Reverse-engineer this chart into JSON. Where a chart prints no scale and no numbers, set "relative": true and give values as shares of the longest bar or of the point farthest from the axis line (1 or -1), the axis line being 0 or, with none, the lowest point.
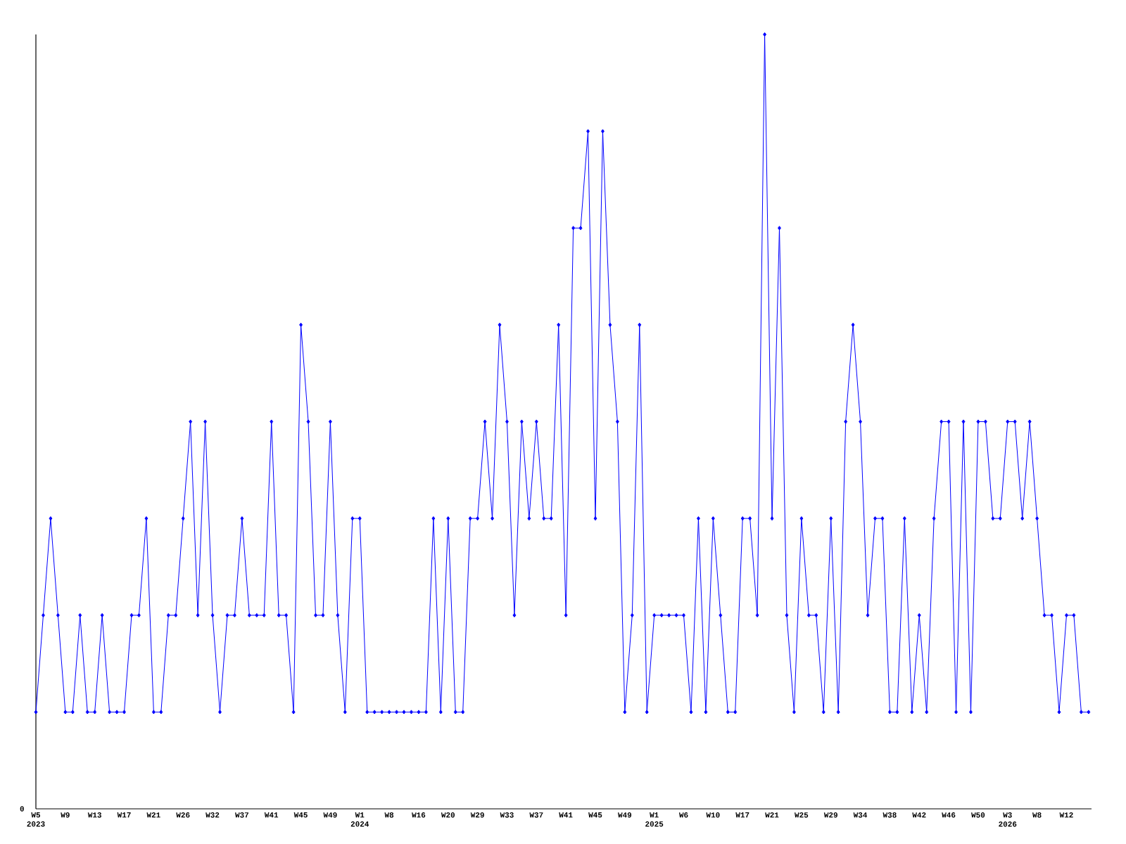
{
  "chart_data": {
    "type": "line",
    "relative": true,
    "color": "#0000ff",
    "marker": "diamond",
    "line_style": "solid",
    "categories": [
      "W5 2023",
      null,
      null,
      null,
      "W9",
      null,
      null,
      null,
      "W13",
      null,
      null,
      null,
      "W17",
      null,
      null,
      null,
      "W21",
      null,
      null,
      null,
      "W26",
      null,
      null,
      null,
      "W32",
      null,
      null,
      null,
      "W37",
      null,
      null,
      null,
      "W41",
      null,
      null,
      null,
      "W45",
      null,
      null,
      null,
      "W49",
      null,
      null,
      null,
      "W1 2024",
      null,
      null,
      null,
      "W8",
      null,
      null,
      null,
      "W16",
      null,
      null,
      null,
      "W20",
      null,
      null,
      null,
      "W29",
      null,
      null,
      null,
      "W33",
      null,
      null,
      null,
      "W37",
      null,
      null,
      null,
      "W41",
      null,
      null,
      null,
      "W45",
      null,
      null,
      null,
      "W49",
      null,
      null,
      null,
      "W1 2025",
      null,
      null,
      null,
      "W6",
      null,
      null,
      null,
      "W10",
      null,
      null,
      null,
      "W17",
      null,
      null,
      null,
      "W21",
      null,
      null,
      null,
      "W25",
      null,
      null,
      null,
      "W29",
      null,
      null,
      null,
      "W34",
      null,
      null,
      null,
      "W38",
      null,
      null,
      null,
      "W42",
      null,
      null,
      null,
      "W46",
      null,
      null,
      null,
      "W50",
      null,
      null,
      null,
      "W3 2026",
      null,
      null,
      null,
      "W8",
      null,
      null,
      null,
      "W12",
      null,
      null,
      null
    ],
    "values": [
      0.125,
      0.25,
      0.375,
      0.25,
      0.125,
      0.125,
      0.25,
      0.125,
      0.125,
      0.25,
      0.125,
      0.125,
      0.125,
      0.25,
      0.25,
      0.375,
      0.125,
      0.125,
      0.25,
      0.25,
      0.375,
      0.5,
      0.25,
      0.5,
      0.25,
      0.125,
      0.25,
      0.25,
      0.375,
      0.25,
      0.25,
      0.25,
      0.5,
      0.25,
      0.25,
      0.125,
      0.625,
      0.5,
      0.25,
      0.25,
      0.5,
      0.25,
      0.125,
      0.375,
      0.375,
      0.125,
      0.125,
      0.125,
      0.125,
      0.125,
      0.125,
      0.125,
      0.125,
      0.125,
      0.375,
      0.125,
      0.375,
      0.125,
      0.125,
      0.375,
      0.375,
      0.5,
      0.375,
      0.625,
      0.5,
      0.25,
      0.5,
      0.375,
      0.5,
      0.375,
      0.375,
      0.625,
      0.25,
      0.75,
      0.75,
      0.875,
      0.375,
      0.875,
      0.625,
      0.5,
      0.125,
      0.25,
      0.625,
      0.125,
      0.25,
      0.25,
      0.25,
      0.25,
      0.25,
      0.125,
      0.375,
      0.125,
      0.375,
      0.25,
      0.125,
      0.125,
      0.375,
      0.375,
      0.25,
      1,
      0.375,
      0.75,
      0.25,
      0.125,
      0.375,
      0.25,
      0.25,
      0.125,
      0.375,
      0.125,
      0.5,
      0.625,
      0.5,
      0.25,
      0.375,
      0.375,
      0.125,
      0.125,
      0.375,
      0.125,
      0.25,
      0.125,
      0.375,
      0.5,
      0.5,
      0.125,
      0.5,
      0.125,
      0.5,
      0.5,
      0.375,
      0.375,
      0.5,
      0.5,
      0.375,
      0.5,
      0.375,
      0.25,
      0.25,
      0.125,
      0.25,
      0.25,
      0.125,
      0.125
    ],
    "annotations": [
      "0"
    ]
  }
}
